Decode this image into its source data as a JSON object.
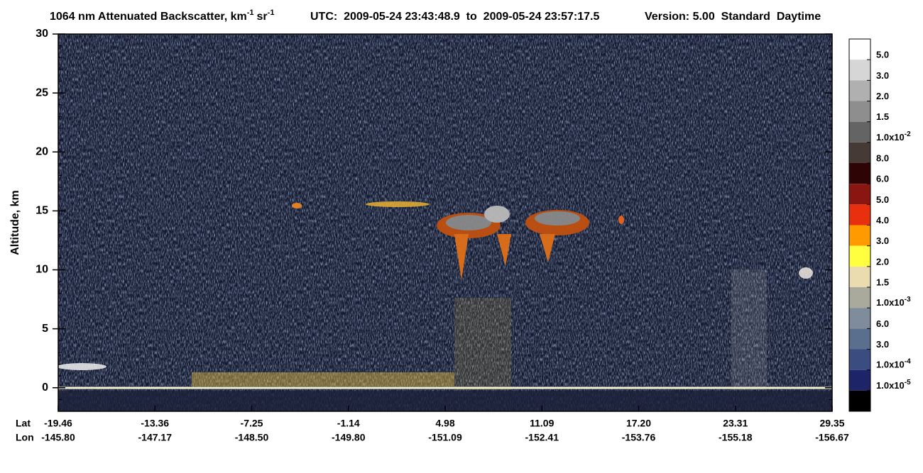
{
  "chart_data": {
    "type": "image",
    "title": {
      "text": "1064 nm Attenuated Backscatter, km",
      "unit_exp": "-1",
      "unit2": "sr",
      "unit2_exp": "-1"
    },
    "time_range": "UTC:  2009-05-24 23:43:48.9  to  2009-05-24 23:57:17.5",
    "version": "Version: 5.00  Standard  Daytime",
    "ylabel": "Altitude, km",
    "ylim": [
      -2,
      30
    ],
    "yticks": [
      0,
      5,
      10,
      15,
      20,
      25,
      30
    ],
    "x_rows": [
      {
        "name": "Lat",
        "labels": [
          "-19.46",
          "-13.36",
          "-7.25",
          "-1.14",
          "4.98",
          "11.09",
          "17.20",
          "23.31",
          "29.35"
        ]
      },
      {
        "name": "Lon",
        "labels": [
          "-145.80",
          "-147.17",
          "-148.50",
          "-149.80",
          "-151.09",
          "-152.41",
          "-153.76",
          "-155.18",
          "-156.67"
        ]
      }
    ],
    "colorbar": {
      "colors": [
        "#ffffff",
        "#d6d6d6",
        "#b0b0b0",
        "#8e8e8e",
        "#646464",
        "#463a36",
        "#2e0404",
        "#8a1612",
        "#e8300e",
        "#ff9a00",
        "#ffff40",
        "#eadcae",
        "#aaaa9c",
        "#7e8c9c",
        "#5a6e8e",
        "#3a4c80",
        "#1e2468",
        "#000000"
      ],
      "labels": [
        "5.0",
        "3.0",
        "2.0",
        "1.5",
        {
          "mantissa": "1.0x10",
          "exponent": "-2"
        },
        "8.0",
        "6.0",
        "5.0",
        "4.0",
        "3.0",
        "2.0",
        "1.5",
        {
          "mantissa": "1.0x10",
          "exponent": "-3"
        },
        "6.0",
        "3.0",
        {
          "mantissa": "1.0x10",
          "exponent": "-4"
        },
        {
          "mantissa": "1.0x10",
          "exponent": "-5"
        }
      ]
    }
  }
}
